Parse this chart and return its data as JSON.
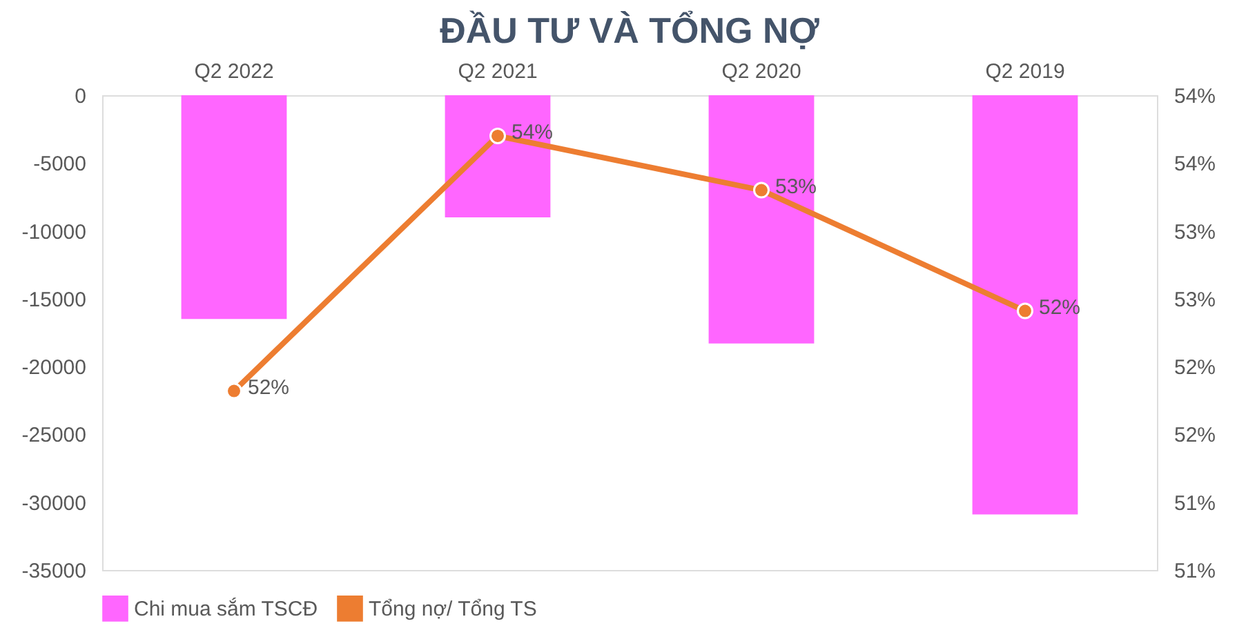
{
  "chart_data": {
    "type": "bar",
    "title": "ĐẦU TƯ VÀ TỔNG NỢ",
    "categories": [
      "Q2 2022",
      "Q2 2021",
      "Q2 2020",
      "Q2 2019"
    ],
    "series": [
      {
        "name": "Chi mua sắm TSCĐ",
        "color": "#ff66ff",
        "values": [
          -16500,
          -9000,
          -18300,
          -30900
        ]
      },
      {
        "name": "Tổng nợ/ Tổng TS",
        "type": "line",
        "axis": "y2",
        "color": "#ed7d31",
        "marker": "circle",
        "values": [
          51.82,
          53.7,
          53.3,
          52.41
        ],
        "value_labels": [
          "52%",
          "54%",
          "53%",
          "52%"
        ]
      }
    ],
    "ylim": [
      -35000,
      0
    ],
    "yticks": [
      0,
      -5000,
      -10000,
      -15000,
      -20000,
      -25000,
      -30000,
      -35000
    ],
    "y2lim": [
      50.5,
      54
    ],
    "y2ticks": [
      {
        "value": 54,
        "label": "54%"
      },
      {
        "value": 53.5,
        "label": "54%"
      },
      {
        "value": 53,
        "label": "53%"
      },
      {
        "value": 52.5,
        "label": "53%"
      },
      {
        "value": 52,
        "label": "52%"
      },
      {
        "value": 51.5,
        "label": "52%"
      },
      {
        "value": 51,
        "label": "51%"
      },
      {
        "value": 50.5,
        "label": "51%"
      }
    ],
    "legend": "bottom"
  }
}
